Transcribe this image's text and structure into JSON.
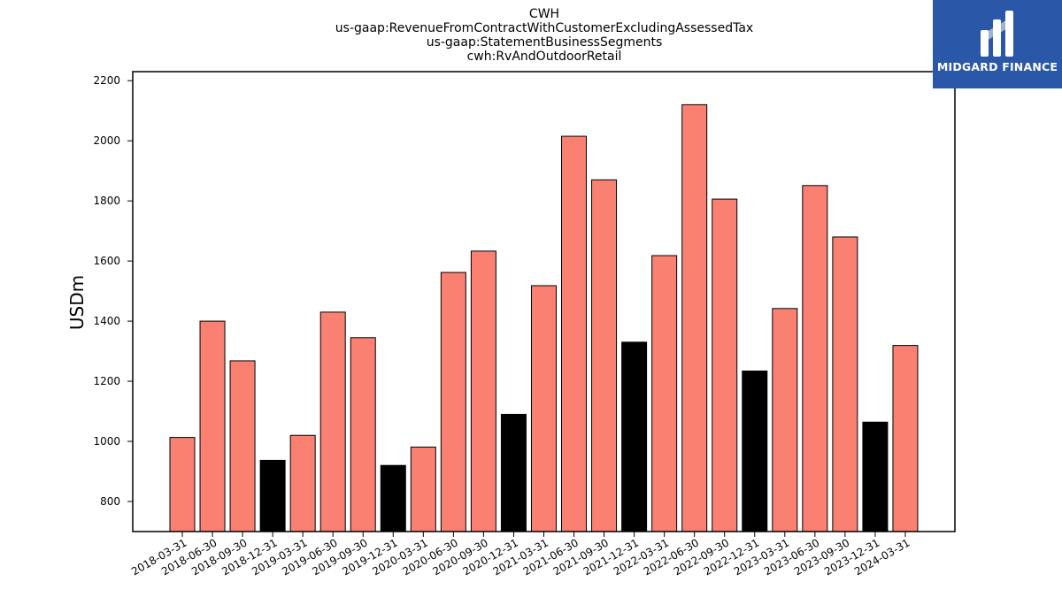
{
  "chart_data": {
    "type": "bar",
    "title_lines": [
      "CWH",
      "us-gaap:RevenueFromContractWithCustomerExcludingAssessedTax",
      "us-gaap:StatementBusinessSegments",
      "cwh:RvAndOutdoorRetail"
    ],
    "ylabel": "USDm",
    "xlabel": "",
    "ylim": [
      700,
      2230
    ],
    "yticks": [
      800,
      1000,
      1200,
      1400,
      1600,
      1800,
      2000,
      2200
    ],
    "categories": [
      "2018-03-31",
      "2018-06-30",
      "2018-09-30",
      "2018-12-31",
      "2019-03-31",
      "2019-06-30",
      "2019-09-30",
      "2019-12-31",
      "2020-03-31",
      "2020-06-30",
      "2020-09-30",
      "2020-12-31",
      "2021-03-31",
      "2021-06-30",
      "2021-09-30",
      "2021-12-31",
      "2022-03-31",
      "2022-06-30",
      "2022-09-30",
      "2022-12-31",
      "2023-03-31",
      "2023-06-30",
      "2023-09-30",
      "2023-12-31",
      "2024-03-31"
    ],
    "values": [
      1013,
      1400,
      1268,
      937,
      1020,
      1430,
      1345,
      920,
      981,
      1562,
      1633,
      1090,
      1518,
      2015,
      1870,
      1330,
      1618,
      2120,
      1806,
      1234,
      1442,
      1851,
      1680,
      1064,
      1319
    ],
    "colors": {
      "default": "#fa8072",
      "year_end": "#000000",
      "edge": "#000000"
    },
    "grid": false,
    "legend": "none"
  },
  "logo": {
    "text": "MIDGARD FINANCE",
    "background": "#2b57a8"
  }
}
